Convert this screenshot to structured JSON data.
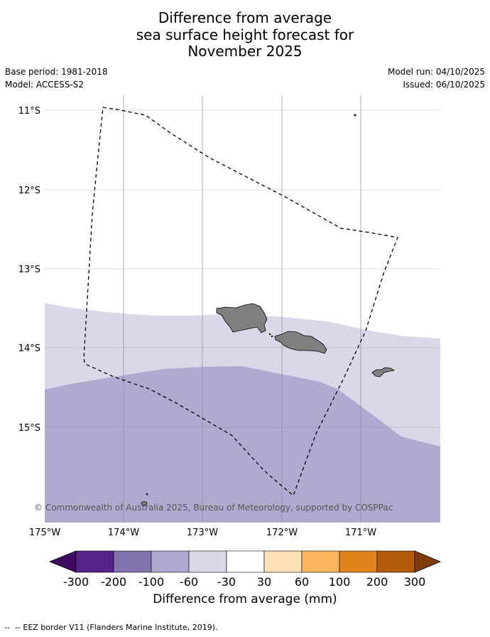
{
  "title": {
    "line1": "Difference from average",
    "line2": "sea surface height forecast for",
    "line3": "November 2025"
  },
  "meta_left": {
    "base_period": "Base period: 1981-2018",
    "model": "Model: ACCESS-S2"
  },
  "meta_right": {
    "model_run": "Model run: 04/10/2025",
    "issued": "Issued: 06/10/2025"
  },
  "map": {
    "lat_labels": [
      "11°S",
      "12°S",
      "13°S",
      "14°S",
      "15°S"
    ],
    "lon_labels": [
      "175°W",
      "174°W",
      "173°W",
      "172°W",
      "171°W"
    ],
    "copyright": "© Commonwealth of Australia 2025, Bureau of Meteorology, supported by COSPPac",
    "land_color": "#808080",
    "colors": {
      "class_-60_-30": "#d8d8e8",
      "class_-100_-60": "#b0aad0"
    }
  },
  "colorbar": {
    "label": "Difference from average (mm)",
    "ticks": [
      "-300",
      "-200",
      "-100",
      "-60",
      "-30",
      "30",
      "60",
      "100",
      "200",
      "300"
    ],
    "colors": [
      "#3f0a62",
      "#55228a",
      "#8272ae",
      "#b0aad0",
      "#d8d8e8",
      "#ffffff",
      "#fde0b6",
      "#fbb55d",
      "#e1841a",
      "#b35a08",
      "#7f3b09"
    ]
  },
  "footer": {
    "legend_text": "-- EEZ border V11 (Flanders Marine Institute, 2019)."
  }
}
